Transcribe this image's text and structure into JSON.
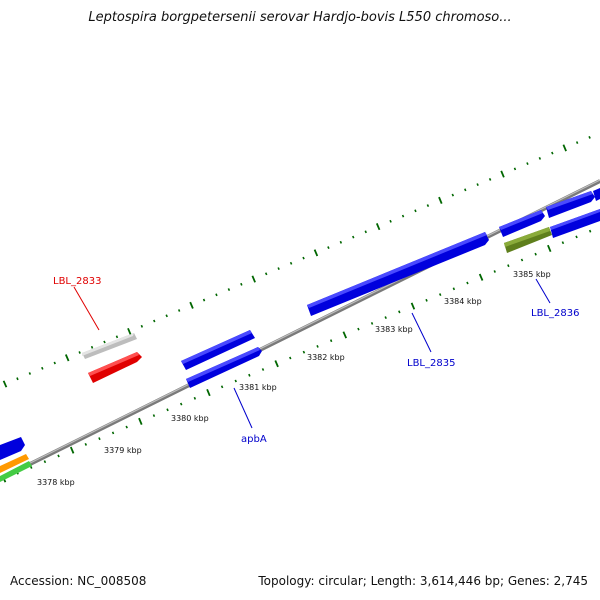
{
  "title": "Leptospira borgpetersenii serovar Hardjo-bovis L550 chromoso...",
  "footer": {
    "accession": "Accession: NC_008508",
    "topology": "Topology: circular; Length: 3,614,446 bp; Genes: 2,745"
  },
  "ticks": [
    {
      "label": "3378 kbp"
    },
    {
      "label": "3379 kbp"
    },
    {
      "label": "3380 kbp"
    },
    {
      "label": "3381 kbp"
    },
    {
      "label": "3382 kbp"
    },
    {
      "label": "3383 kbp"
    },
    {
      "label": "3384 kbp"
    },
    {
      "label": "3385 kbp"
    }
  ],
  "gene_labels": [
    {
      "name": "LBL_2833",
      "color": "#e00000"
    },
    {
      "name": "apbA",
      "color": "#0000cc"
    },
    {
      "name": "LBL_2835",
      "color": "#0000cc"
    },
    {
      "name": "LBL_2836",
      "color": "#0000cc"
    }
  ],
  "colors": {
    "backbone": "#8c8c8c",
    "forward_gene": "#0000ee",
    "highlight_gene": "#ee0000",
    "pseudo_gene": "#c8c8c8",
    "olive_gene": "#6b8e23",
    "orange_gene": "#ff9900",
    "green_gene": "#44cc44",
    "tick_dots": "#006600"
  }
}
